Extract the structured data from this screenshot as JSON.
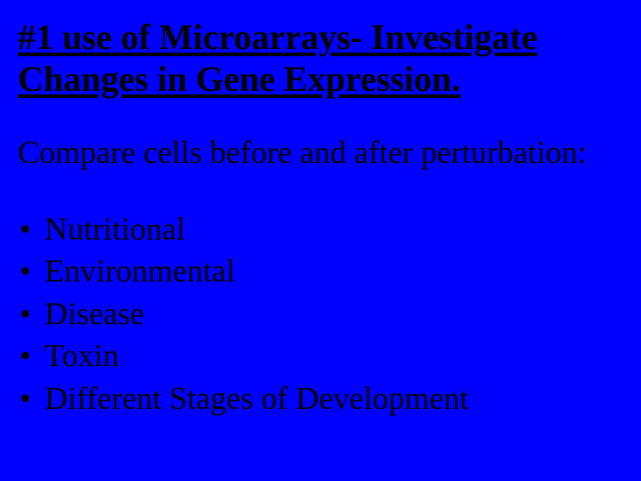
{
  "slide": {
    "background_color": "#0000ff",
    "text_color": "#000000",
    "font_family": "Times New Roman",
    "title": {
      "text": "#1 use  of Microarrays-  Investigate Changes in Gene Expression.",
      "fontsize": 40,
      "underline": true
    },
    "subtitle": {
      "text": "Compare cells before and after perturbation:",
      "fontsize": 36
    },
    "bullets": {
      "fontsize": 36,
      "marker": "•",
      "items": [
        "Nutritional",
        "Environmental",
        "Disease",
        "Toxin",
        "Different Stages of Development"
      ]
    }
  }
}
